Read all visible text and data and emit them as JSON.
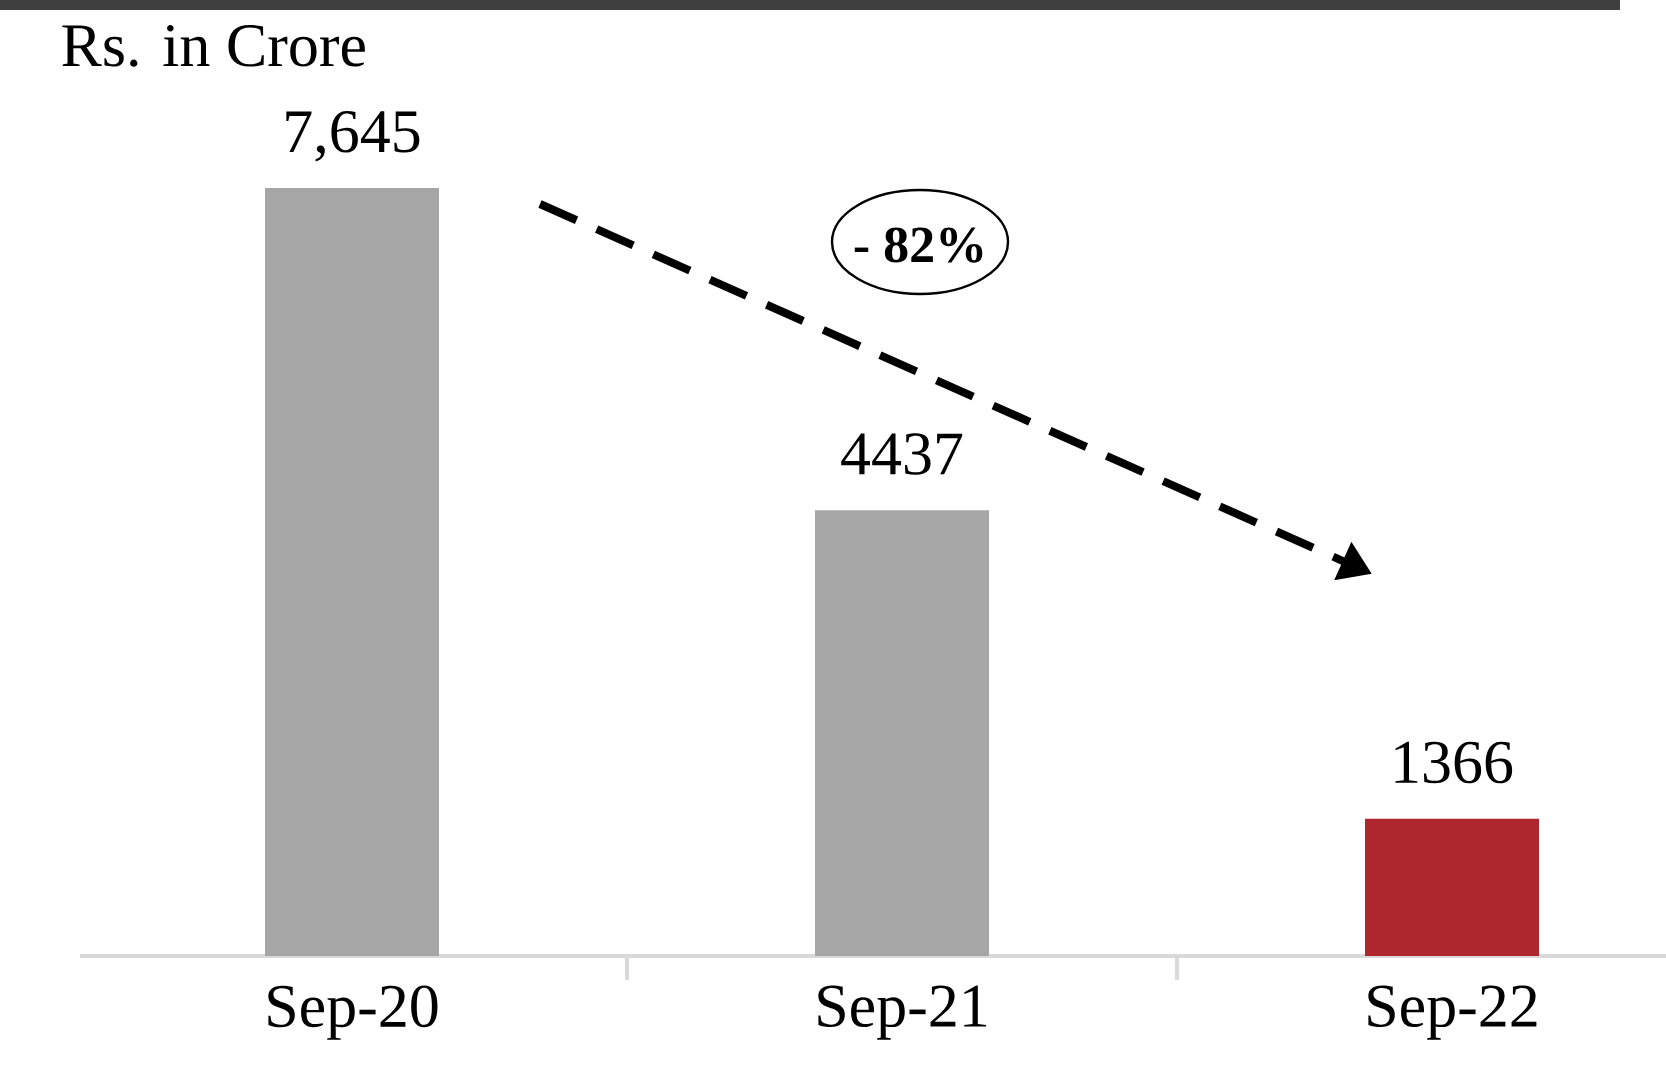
{
  "chart_data": {
    "type": "bar",
    "ylabel": "Rs. in Crore",
    "categories": [
      "Sep-20",
      "Sep-21",
      "Sep-22"
    ],
    "values": [
      7645,
      4437,
      1366
    ],
    "colors": [
      "#a6a6a6",
      "#a6a6a6",
      "#b0262f"
    ],
    "value_labels": [
      "7,645",
      "4437",
      "1366"
    ],
    "annotations": [
      "- 82%"
    ]
  }
}
